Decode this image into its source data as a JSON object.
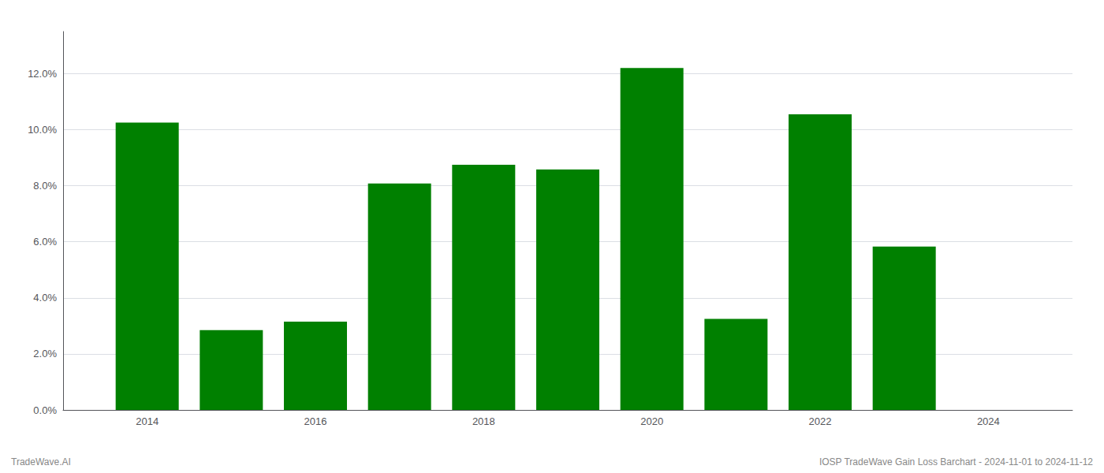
{
  "chart_data": {
    "type": "bar",
    "x": [
      2014,
      2015,
      2016,
      2017,
      2018,
      2019,
      2020,
      2021,
      2022,
      2023
    ],
    "values": [
      0.1025,
      0.0285,
      0.0315,
      0.0808,
      0.0875,
      0.0858,
      0.122,
      0.0325,
      0.1055,
      0.0583
    ],
    "color": "#008000",
    "xlim": [
      2013.0,
      2025.0
    ],
    "xticks": [
      2014,
      2016,
      2018,
      2020,
      2022,
      2024
    ],
    "ylim": [
      0,
      0.135
    ],
    "yticks": [
      {
        "value": 0.0,
        "label": "0.0%"
      },
      {
        "value": 0.02,
        "label": "2.0%"
      },
      {
        "value": 0.04,
        "label": "4.0%"
      },
      {
        "value": 0.06,
        "label": "6.0%"
      },
      {
        "value": 0.08,
        "label": "8.0%"
      },
      {
        "value": 0.1,
        "label": "10.0%"
      },
      {
        "value": 0.12,
        "label": "12.0%"
      }
    ],
    "grid": true,
    "annotations": [
      "TradeWave.AI",
      "IOSP TradeWave Gain Loss Barchart - 2024-11-01 to 2024-11-12"
    ]
  }
}
